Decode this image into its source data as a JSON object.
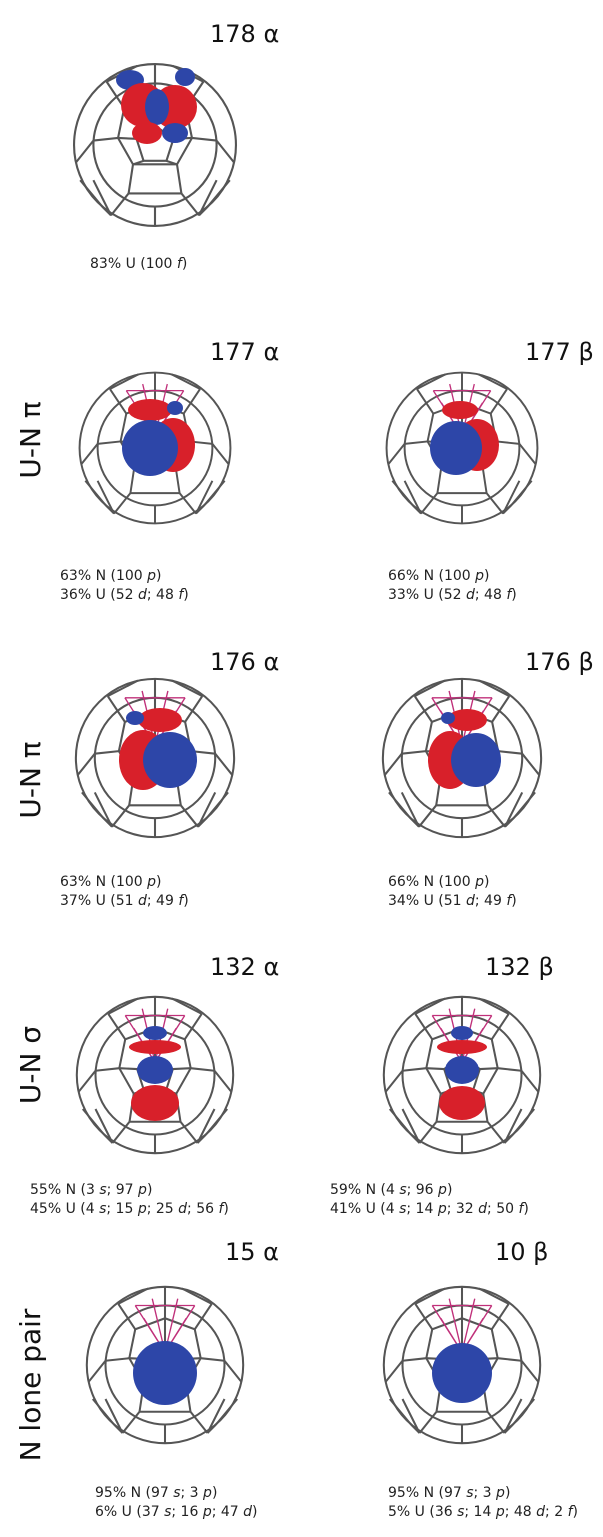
{
  "rows": [
    {
      "panels": [
        {
          "title": "178 α",
          "lines": [
            "83% U (100 f)"
          ]
        }
      ]
    },
    {
      "label": "U-N π",
      "panels": [
        {
          "title": "177 α",
          "lines": [
            "63% N (100 p)",
            "36% U (52 d; 48 f)"
          ]
        },
        {
          "title": "177 β",
          "lines": [
            "66% N (100 p)",
            "33% U (52 d; 48 f)"
          ]
        }
      ]
    },
    {
      "label": "U-N π",
      "panels": [
        {
          "title": "176 α",
          "lines": [
            "63% N (100 p)",
            "37% U (51 d; 49 f)"
          ]
        },
        {
          "title": "176 β",
          "lines": [
            "66% N (100 p)",
            "34% U (51 d; 49 f)"
          ]
        }
      ]
    },
    {
      "label": "U-N σ",
      "panels": [
        {
          "title": "132 α",
          "lines": [
            "55% N (3 s; 97 p)",
            "45% U (4 s; 15 p; 25 d; 56 f)"
          ]
        },
        {
          "title": "132 β",
          "lines": [
            "59% N (4 s; 96 p)",
            "41% U (4 s; 14 p; 32 d; 50 f)"
          ]
        }
      ]
    },
    {
      "label": "N lone pair",
      "panels": [
        {
          "title": "15 α",
          "lines": [
            "95% N (97 s; 3 p)",
            "6% U (37 s; 16 p; 47 d)"
          ]
        },
        {
          "title": "10 β",
          "lines": [
            "95% N (97 s; 3 p)",
            "5% U (36 s; 14 p; 48 d; 2 f)"
          ]
        }
      ]
    }
  ]
}
